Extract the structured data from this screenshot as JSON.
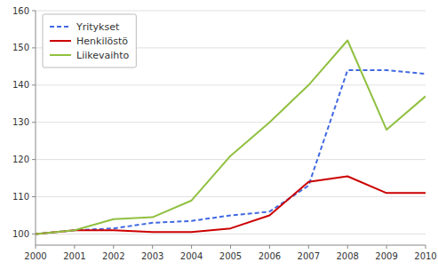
{
  "chart_data": {
    "type": "line",
    "x": [
      2000,
      2001,
      2002,
      2003,
      2004,
      2005,
      2006,
      2007,
      2008,
      2009,
      2010
    ],
    "series": [
      {
        "name": "Yritykset",
        "color": "#4169E1",
        "line_style": "dashed",
        "values": [
          100,
          101,
          101.5,
          103,
          103.5,
          105,
          106,
          113,
          144,
          144,
          143
        ]
      },
      {
        "name": "Henkilöstö",
        "color": "#CC0000",
        "line_style": "solid",
        "values": [
          100,
          101,
          101,
          100.5,
          100.5,
          101.5,
          105,
          114,
          115.5,
          111,
          111
        ]
      },
      {
        "name": "Liikevaihto",
        "color": "#90C040",
        "line_style": "solid",
        "values": [
          100,
          101,
          104,
          104.5,
          109,
          121,
          130,
          140,
          152,
          128,
          137
        ]
      }
    ],
    "xlim": [
      2000,
      2010
    ],
    "xticks": [
      2000,
      2001,
      2002,
      2003,
      2004,
      2005,
      2006,
      2007,
      2008,
      2009,
      2010
    ],
    "ylim": [
      97,
      160
    ],
    "yticks": [
      100,
      110,
      120,
      130,
      140,
      150,
      160
    ],
    "grid": true,
    "legend": "upper left"
  }
}
